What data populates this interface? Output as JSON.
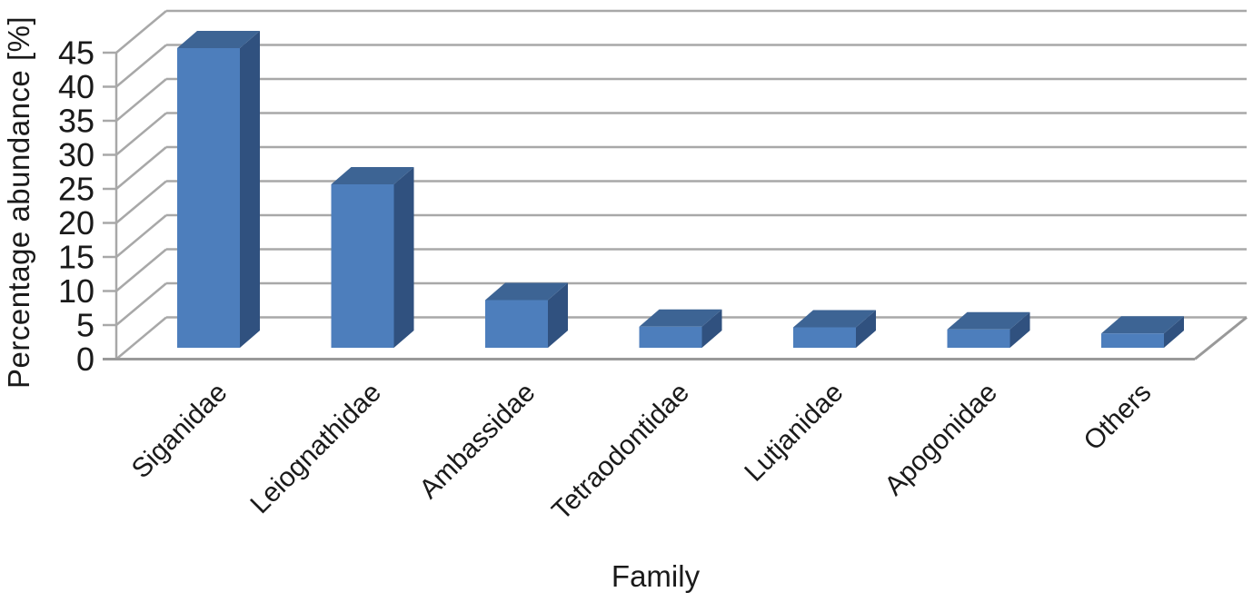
{
  "chart_data": {
    "type": "bar",
    "style": "3d-column",
    "title": "",
    "xlabel": "Family",
    "ylabel": "Percentage abundance [%]",
    "categories": [
      "Siganidae",
      "Leiognathidae",
      "Ambassidae",
      "Tetraodontidae",
      "Lutjanidae",
      "Apogonidae",
      "Others"
    ],
    "values": [
      44.0,
      24.0,
      7.0,
      3.1,
      3.0,
      2.7,
      2.1
    ],
    "ylim": [
      0,
      45
    ],
    "ytick_step": 5,
    "ytick_labels": [
      "0",
      "5",
      "10",
      "15",
      "20",
      "25",
      "30",
      "35",
      "40",
      "45"
    ],
    "grid": true,
    "legend": false,
    "colors": {
      "bar_front": "#4d7ebc",
      "bar_top": "#3d6494",
      "bar_side": "#30517f",
      "gridline": "#a8a8a8",
      "axis_line": "#999999",
      "text": "#1a1a1a",
      "background": "#ffffff"
    }
  }
}
